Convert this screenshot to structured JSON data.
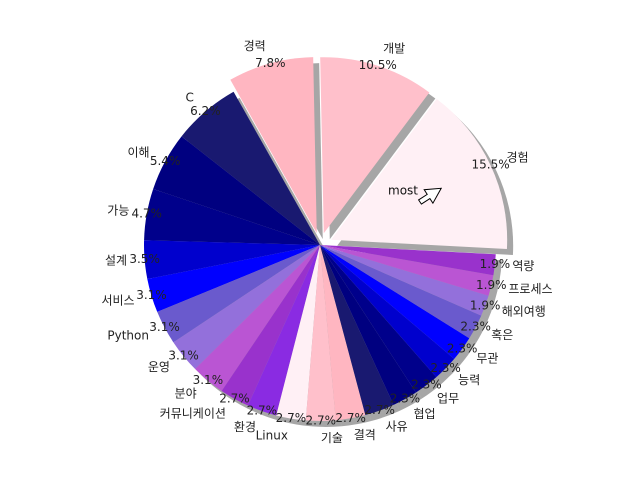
{
  "chart_data": {
    "type": "pie",
    "title": "",
    "start_angle_deg": -3,
    "direction": "counterclockwise",
    "shadow": true,
    "slices": [
      {
        "label": "경험",
        "value": 15.5,
        "pct": "15.5%",
        "color": "#fff0f5",
        "explode": true
      },
      {
        "label": "개발",
        "value": 10.5,
        "pct": "10.5%",
        "color": "#ffc0cb",
        "explode": true
      },
      {
        "label": "경력",
        "value": 7.8,
        "pct": "7.8%",
        "color": "#ffb6c1",
        "explode": true
      },
      {
        "label": "C",
        "value": 6.2,
        "pct": "6.2%",
        "color": "#191970"
      },
      {
        "label": "이해",
        "value": 5.4,
        "pct": "5.4%",
        "color": "#000080"
      },
      {
        "label": "가능",
        "value": 4.7,
        "pct": "4.7%",
        "color": "#00008b"
      },
      {
        "label": "설계",
        "value": 3.5,
        "pct": "3.5%",
        "color": "#0000cd"
      },
      {
        "label": "서비스",
        "value": 3.1,
        "pct": "3.1%",
        "color": "#0000ff"
      },
      {
        "label": "Python",
        "value": 3.1,
        "pct": "3.1%",
        "color": "#6a5acd"
      },
      {
        "label": "운영",
        "value": 3.1,
        "pct": "3.1%",
        "color": "#9370db"
      },
      {
        "label": "분야",
        "value": 3.1,
        "pct": "3.1%",
        "color": "#ba55d3"
      },
      {
        "label": "커뮤니케이션",
        "value": 2.7,
        "pct": "2.7%",
        "color": "#9932cc"
      },
      {
        "label": "환경",
        "value": 2.7,
        "pct": "2.7%",
        "color": "#8a2be2"
      },
      {
        "label": "Linux",
        "value": 2.7,
        "pct": "2.7%",
        "color": "#fff0f5"
      },
      {
        "label": "기술",
        "value": 2.7,
        "pct": "2.7%",
        "color": "#ffc0cb"
      },
      {
        "label": "결격",
        "value": 2.7,
        "pct": "2.7%",
        "color": "#ffb6c1"
      },
      {
        "label": "사유",
        "value": 2.7,
        "pct": "2.7%",
        "color": "#191970"
      },
      {
        "label": "협업",
        "value": 2.3,
        "pct": "2.3%",
        "color": "#000080"
      },
      {
        "label": "업무",
        "value": 2.3,
        "pct": "2.3%",
        "color": "#00008b"
      },
      {
        "label": "능력",
        "value": 2.3,
        "pct": "2.3%",
        "color": "#0000cd"
      },
      {
        "label": "무관",
        "value": 2.3,
        "pct": "2.3%",
        "color": "#0000ff"
      },
      {
        "label": "혹은",
        "value": 2.3,
        "pct": "2.3%",
        "color": "#6a5acd"
      },
      {
        "label": "해외여행",
        "value": 1.9,
        "pct": "1.9%",
        "color": "#9370db"
      },
      {
        "label": "프로세스",
        "value": 1.9,
        "pct": "1.9%",
        "color": "#ba55d3"
      },
      {
        "label": "역량",
        "value": 1.9,
        "pct": "1.9%",
        "color": "#9932cc"
      }
    ],
    "annotation": {
      "text": "most",
      "arrow_target": "경험"
    }
  }
}
